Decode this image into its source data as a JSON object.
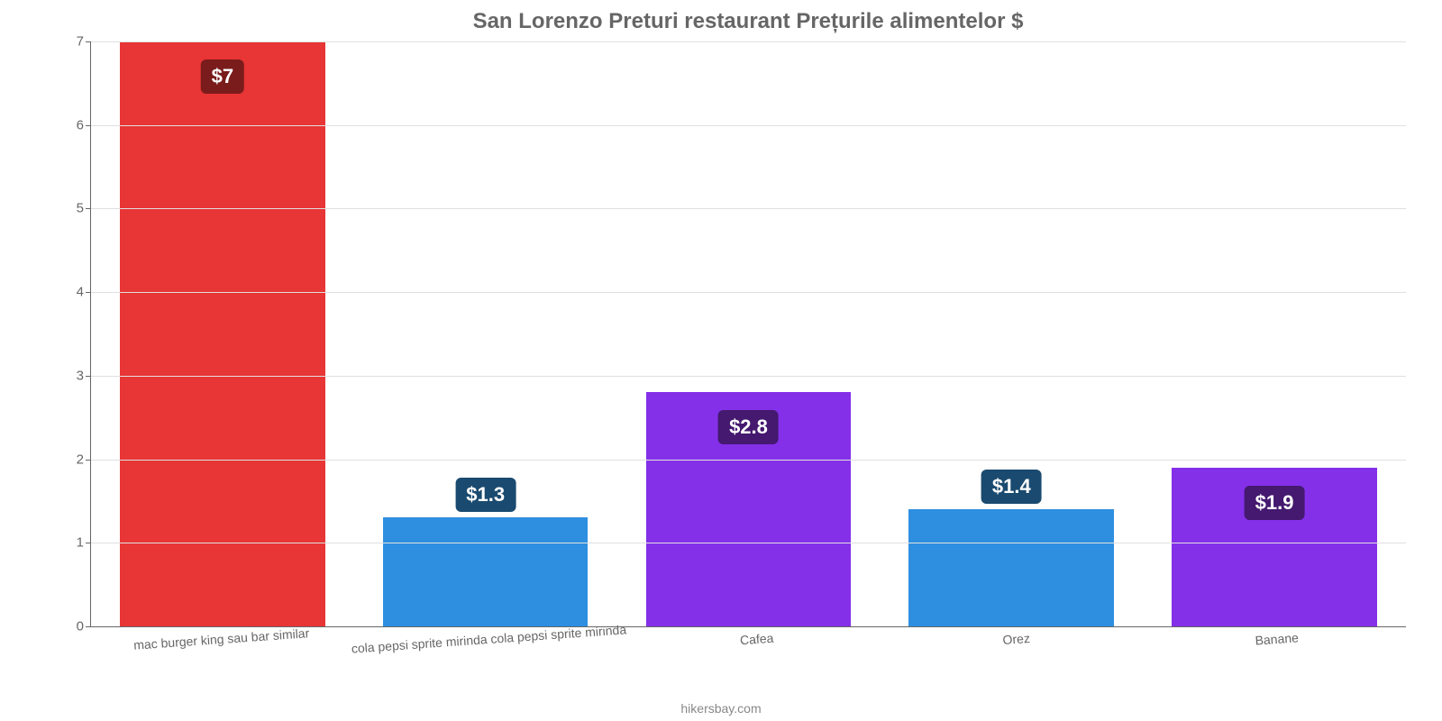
{
  "chart": {
    "type": "bar",
    "title": "San Lorenzo Preturi restaurant Prețurile alimentelor $",
    "title_fontsize": 24,
    "title_color": "#666666",
    "background_color": "#ffffff",
    "grid_color": "#e0e0e0",
    "axis_color": "#666666",
    "tick_color": "#666666",
    "tick_fontsize": 15,
    "xlabel_fontsize": 14,
    "value_label_fontsize": 22,
    "source_fontsize": 14,
    "source_color": "#888888",
    "ylim": [
      0,
      7
    ],
    "ytick_step": 1,
    "yticks": [
      0,
      1,
      2,
      3,
      4,
      5,
      6,
      7
    ],
    "bar_width": 0.78,
    "categories": [
      "mac burger king sau bar similar",
      "cola pepsi sprite mirinda cola pepsi sprite mirinda",
      "Cafea",
      "Orez",
      "Banane"
    ],
    "values": [
      7,
      1.3,
      2.8,
      1.4,
      1.9
    ],
    "value_labels": [
      "$7",
      "$1.3",
      "$2.8",
      "$1.4",
      "$1.9"
    ],
    "bar_colors": [
      "#e83535",
      "#2e8fe0",
      "#8430e8",
      "#2e8fe0",
      "#8430e8"
    ],
    "label_bg_colors": [
      "#7a1c1c",
      "#1a4a6f",
      "#44196f",
      "#1a4a6f",
      "#44196f"
    ],
    "label_positions": [
      "inside",
      "above",
      "inside",
      "above",
      "inside"
    ],
    "source": "hikersbay.com"
  }
}
